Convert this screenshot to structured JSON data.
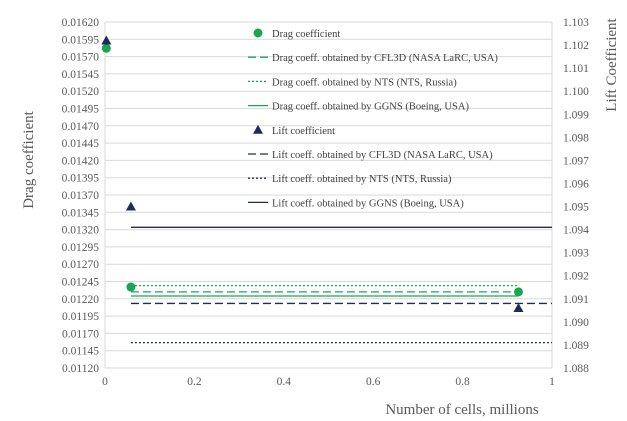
{
  "chart_data": {
    "type": "scatter",
    "xlabel": "Number of cells, millions",
    "ylabel_left": "Drag coefficient",
    "ylabel_right": "Lift Coefficient",
    "xlim": [
      0,
      1
    ],
    "ylim_left": [
      0.0112,
      0.0162
    ],
    "ylim_right": [
      1.088,
      1.103
    ],
    "x_ticks": [
      "0",
      "0.2",
      "0.4",
      "0.6",
      "0.8",
      "1"
    ],
    "y_ticks_left": [
      "0.01120",
      "0.01145",
      "0.01170",
      "0.01195",
      "0.01220",
      "0.01245",
      "0.01270",
      "0.01295",
      "0.01320",
      "0.01345",
      "0.01370",
      "0.01395",
      "0.01420",
      "0.01445",
      "0.01470",
      "0.01495",
      "0.01520",
      "0.01545",
      "0.01570",
      "0.01595",
      "0.01620"
    ],
    "y_ticks_right": [
      "1.088",
      "1.089",
      "1.090",
      "1.091",
      "1.092",
      "1.093",
      "1.094",
      "1.095",
      "1.096",
      "1.097",
      "1.098",
      "1.099",
      "1.100",
      "1.101",
      "1.102",
      "1.103"
    ],
    "grid": "horizontal",
    "legend_position": "top-right",
    "series": [
      {
        "name": "Drag coefficient",
        "kind": "points",
        "axis": "left",
        "marker": "circle",
        "color": "#1ba553",
        "x": [
          0.003,
          0.058,
          0.925
        ],
        "y": [
          0.01582,
          0.01237,
          0.0123
        ]
      },
      {
        "name": "Drag coeff. obtained by CFL3D (NASA LaRC, USA)",
        "kind": "hline",
        "axis": "left",
        "style": "dashed",
        "color": "#1ba553",
        "x": [
          0.058,
          0.925
        ],
        "y": 0.0123
      },
      {
        "name": "Drag coeff. obtained by NTS (NTS, Russia)",
        "kind": "hline",
        "axis": "left",
        "style": "dotted",
        "color": "#1ba553",
        "x": [
          0.058,
          0.925
        ],
        "y": 0.01239
      },
      {
        "name": "Drag coeff. obtained by GGNS (Boeing, USA)",
        "kind": "hline",
        "axis": "left",
        "style": "solid",
        "color": "#1ba553",
        "x": [
          0.058,
          0.925
        ],
        "y": 0.01224
      },
      {
        "name": "Lift coefficient",
        "kind": "points",
        "axis": "right",
        "marker": "triangle",
        "color": "#1f2a5a",
        "x": [
          0.003,
          0.058,
          0.925
        ],
        "y": [
          1.1022,
          1.095,
          1.0906
        ]
      },
      {
        "name": "Lift coeff. obtained by CFL3D (NASA LaRC, USA)",
        "kind": "hline",
        "axis": "right",
        "style": "dashed",
        "color": "#1f2a5a",
        "x": [
          0.058,
          1.0
        ],
        "y": 1.0908
      },
      {
        "name": "Lift coeff. obtained by NTS (NTS, Russia)",
        "kind": "hline",
        "axis": "right",
        "style": "dotted",
        "color": "#1f2a5a",
        "x": [
          0.058,
          1.0
        ],
        "y": 1.0891
      },
      {
        "name": "Lift coeff. obtained by GGNS (Boeing, USA)",
        "kind": "hline",
        "axis": "right",
        "style": "solid",
        "color": "#1f2a5a",
        "x": [
          0.058,
          1.0
        ],
        "y": 1.0941
      }
    ]
  }
}
